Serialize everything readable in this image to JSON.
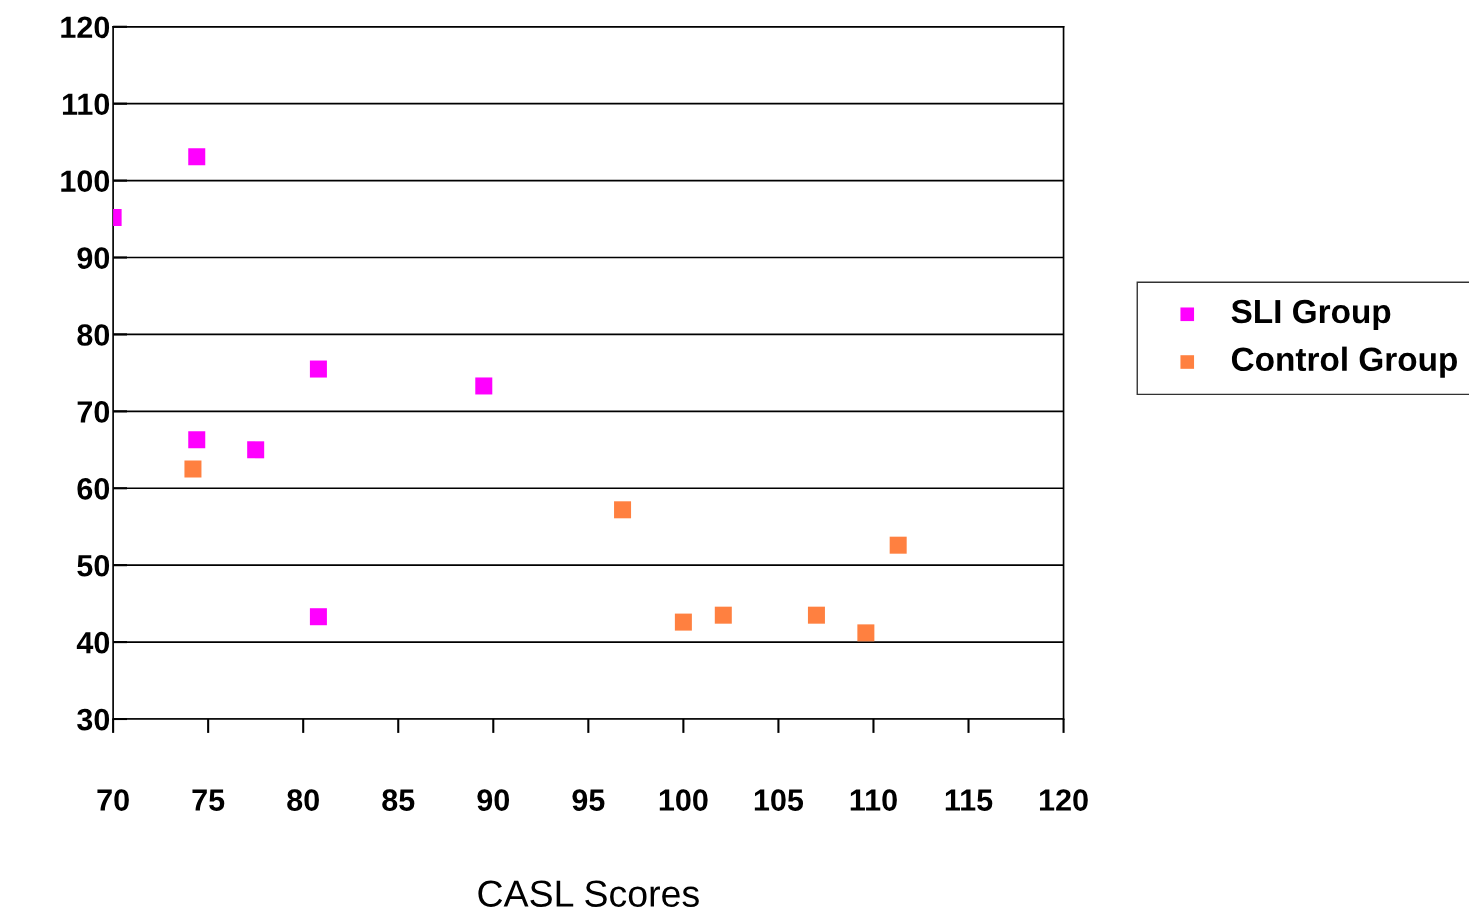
{
  "chart_data": {
    "type": "scatter",
    "xlabel": "CASL Scores",
    "xlim": [
      70,
      120
    ],
    "xticks": [
      70,
      75,
      80,
      85,
      90,
      95,
      100,
      105,
      110,
      115,
      120
    ],
    "ylim": [
      30,
      120
    ],
    "yticks": [
      30,
      40,
      50,
      60,
      70,
      80,
      90,
      100,
      110,
      120
    ],
    "grid": "y",
    "legend": "right",
    "marker": "square",
    "series": [
      {
        "name": "SLI Group",
        "color": "#ff00ff",
        "x": [
          70,
          74.4,
          80.8,
          89.5,
          74.4,
          77.5,
          80.8
        ],
        "values": [
          95.2,
          103.1,
          75.5,
          73.3,
          66.3,
          65,
          43.3
        ]
      },
      {
        "name": "Control Group",
        "color": "#ff8040",
        "x": [
          74.2,
          96.8,
          100,
          102.1,
          107,
          109.6,
          111.3
        ],
        "values": [
          62.5,
          57.2,
          42.6,
          43.5,
          43.5,
          41.2,
          52.6
        ]
      }
    ]
  }
}
